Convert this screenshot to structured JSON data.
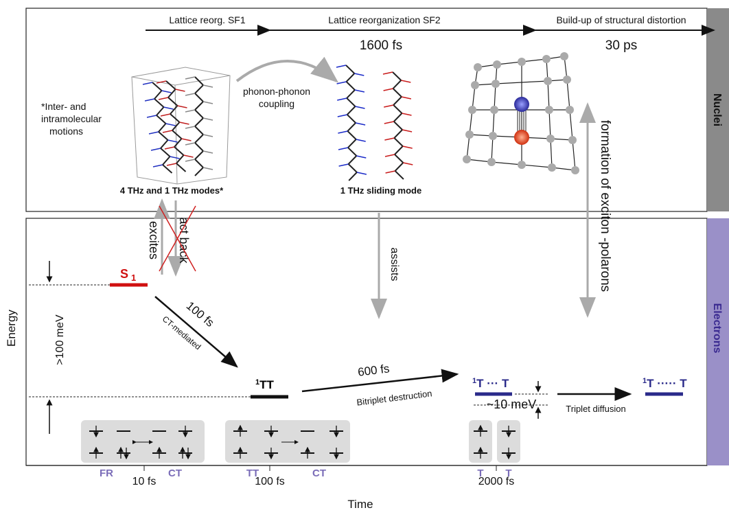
{
  "nuclei_panel": {
    "side_label": "Nuclei",
    "stages": [
      "Lattice reorg. SF1",
      "Lattice reorganization SF2",
      "Build-up of structural distortion"
    ],
    "durations": [
      "1600 fs",
      "30 ps"
    ],
    "motions_note": [
      "*Inter- and",
      "intramolecular",
      "motions"
    ],
    "coupling": [
      "phonon-phonon",
      "coupling"
    ],
    "mode_labels": [
      "4 THz and 1 THz modes*",
      "1 THz sliding mode"
    ],
    "polaron_label": "formation of exciton -polarons"
  },
  "electrons_panel": {
    "side_label": "Electrons",
    "interactions": [
      "excites",
      "act back",
      "assists"
    ],
    "levels": [
      {
        "text": "S",
        "subscript": "1"
      },
      {
        "superscript": "1",
        "text": "TT"
      },
      {
        "superscript": "1",
        "text": "T ··· T"
      },
      {
        "superscript": "1",
        "text": "T ····· T"
      }
    ],
    "transitions": [
      {
        "time": "100 fs",
        "label": "CT-mediated"
      },
      {
        "time": "600 fs",
        "label": "Bitriplet destruction"
      },
      {
        "label": "Triplet diffusion"
      }
    ],
    "energy_gaps": [
      ">100 meV",
      "~10 meV"
    ],
    "state_labels": [
      "FR",
      "CT",
      "TT",
      "CT",
      "T",
      "T"
    ]
  },
  "axes": {
    "y_label": "Energy",
    "x_label": "Time",
    "x_ticks": [
      "10 fs",
      "100 fs",
      "2000 fs"
    ]
  }
}
